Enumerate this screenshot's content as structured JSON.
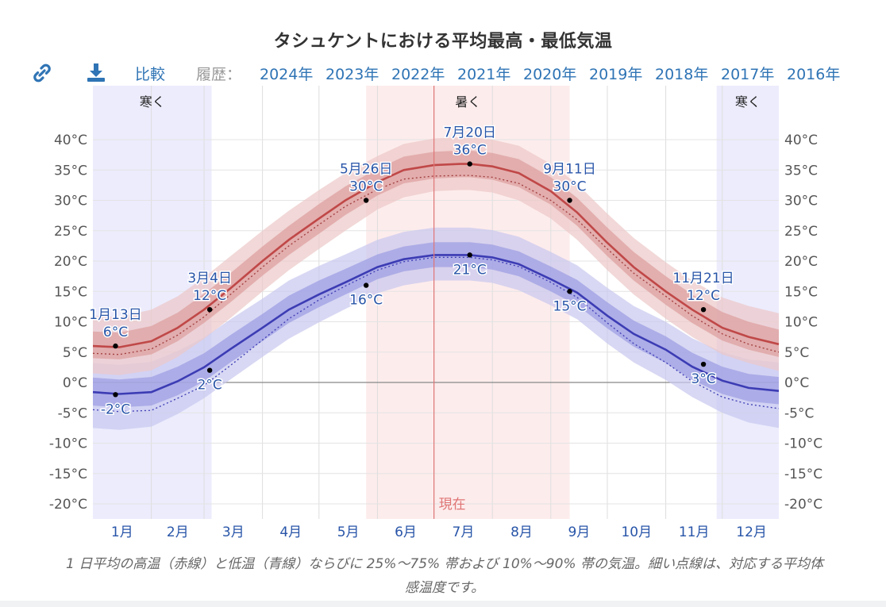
{
  "title": "タシュケントにおける平均最高・最低気温",
  "toolbar": {
    "link_icon": "link-icon",
    "download_icon": "download-icon",
    "compare_label": "比較",
    "history_label": "履歴：",
    "years": [
      "2024年",
      "2023年",
      "2022年",
      "2021年",
      "2020年",
      "2019年",
      "2018年",
      "2017年",
      "2016年"
    ]
  },
  "caption": "1 日平均の高温（赤線）と低温（青線）ならびに 25%～75% 帯および 10%～90% 帯の気温。細い点線は、対応する平均体感温度です。",
  "colors": {
    "high_line": "#c04848",
    "low_line": "#3c3cb4",
    "high_band_inner": "#dd9c9c",
    "high_band_outer": "#ecc8c8",
    "low_band_inner": "#9b9be2",
    "low_band_outer": "#c8c8f0",
    "cold_shade": "#ececfd",
    "hot_shade": "#fdecec",
    "now_line": "#e07575",
    "annotation_text": "#2855a8"
  },
  "chart_data": {
    "type": "line",
    "title": "タシュケントにおける平均最高・最低気温",
    "x_unit": "day of year",
    "y_range": [
      -22.5,
      44
    ],
    "y_ticks": [
      -20,
      -15,
      -10,
      -5,
      0,
      5,
      10,
      15,
      20,
      25,
      30,
      35,
      40
    ],
    "y_tick_suffix": "°C",
    "months": [
      "1月",
      "2月",
      "3月",
      "4月",
      "5月",
      "6月",
      "7月",
      "8月",
      "9月",
      "10月",
      "11月",
      "12月"
    ],
    "grid": true,
    "x": [
      1,
      15,
      32,
      46,
      60,
      74,
      91,
      105,
      121,
      135,
      152,
      166,
      182,
      196,
      201,
      213,
      227,
      244,
      258,
      274,
      288,
      305,
      319,
      335,
      349,
      365
    ],
    "series": [
      {
        "name": "high",
        "values": [
          6,
          5.8,
          6.8,
          9,
          12,
          15.5,
          20,
          23.5,
          27,
          30,
          33,
          35,
          35.8,
          36,
          36,
          35.6,
          34.5,
          31.5,
          28,
          23,
          19,
          15,
          12,
          9,
          7.5,
          6.3
        ],
        "p25": [
          4,
          3.8,
          4.6,
          6.8,
          9.8,
          13.2,
          17.6,
          21,
          24.5,
          27.6,
          30.8,
          32.8,
          33.6,
          33.8,
          33.8,
          33.4,
          32.2,
          29.3,
          25.8,
          20.8,
          16.8,
          12.8,
          9.8,
          6.9,
          5.4,
          4.2
        ],
        "p75": [
          8.4,
          8.2,
          9.3,
          11.5,
          14.6,
          18,
          22.4,
          25.8,
          29.4,
          32.3,
          35.2,
          37.2,
          38,
          38.2,
          38.2,
          37.8,
          36.8,
          33.8,
          30.4,
          25.5,
          21.5,
          17.5,
          14.5,
          11.6,
          10,
          8.7
        ],
        "p10": [
          1.5,
          1.2,
          2,
          4.2,
          7.2,
          10.6,
          15,
          18.5,
          22,
          25,
          28.5,
          30.5,
          31.5,
          31.7,
          31.7,
          31.3,
          30,
          27,
          23.5,
          18.5,
          14.5,
          10.5,
          7.5,
          4.6,
          3.2,
          1.9
        ],
        "p90": [
          11,
          10.8,
          12,
          14.2,
          17.3,
          20.8,
          25,
          28.3,
          31.7,
          34.5,
          37.3,
          39.3,
          40.2,
          40.4,
          40.4,
          40,
          39,
          36,
          32.7,
          27.8,
          23.8,
          19.8,
          16.8,
          14,
          12.6,
          11.4
        ],
        "feels_like": [
          4.8,
          4.6,
          5.5,
          7.8,
          10.8,
          14.5,
          19,
          22.5,
          26,
          29,
          31.8,
          33.5,
          34,
          34.1,
          34.1,
          33.8,
          32.8,
          30,
          26.8,
          22,
          18,
          14.2,
          11,
          8,
          6.3,
          5
        ]
      },
      {
        "name": "low",
        "values": [
          -1.6,
          -1.9,
          -1.6,
          0.2,
          2.5,
          5.5,
          9,
          12,
          14.5,
          16.5,
          19,
          20.3,
          21,
          21,
          21,
          20.6,
          19.5,
          17,
          14.8,
          11,
          8,
          5.4,
          2.6,
          0.3,
          -0.9,
          -1.4
        ],
        "p25": [
          -3.8,
          -4.1,
          -3.8,
          -2.1,
          0.2,
          3.3,
          6.8,
          9.8,
          12.4,
          14.5,
          17,
          18.3,
          19,
          19,
          19,
          18.6,
          17.5,
          15,
          12.7,
          8.9,
          5.9,
          3.2,
          0.4,
          -1.9,
          -3.1,
          -3.6
        ],
        "p75": [
          0.8,
          0.5,
          0.9,
          2.6,
          4.8,
          7.8,
          11.3,
          14.3,
          16.8,
          18.7,
          21.1,
          22.4,
          23.1,
          23.1,
          23.1,
          22.7,
          21.6,
          19.1,
          16.9,
          13.2,
          10.2,
          7.6,
          4.9,
          2.6,
          1.4,
          0.9
        ],
        "p10": [
          -7.5,
          -7.8,
          -7.3,
          -5.2,
          -2.6,
          0.5,
          4.2,
          7.2,
          9.9,
          12.1,
          14.7,
          16,
          16.8,
          16.8,
          16.8,
          16.4,
          15.2,
          12.7,
          10.4,
          6.4,
          3.3,
          0.4,
          -2.4,
          -5,
          -6.6,
          -7.5
        ],
        "p90": [
          3.2,
          2.9,
          3.4,
          5.2,
          7.4,
          10.4,
          13.8,
          16.8,
          19.2,
          21.1,
          23.5,
          24.8,
          25.5,
          25.5,
          25.5,
          25.1,
          24,
          21.5,
          19.3,
          15.6,
          12.6,
          10,
          7.3,
          5,
          3.8,
          3.3
        ],
        "feels_like": [
          -4.5,
          -4.8,
          -4.6,
          -2.6,
          -0.5,
          2.8,
          7,
          10.5,
          13.6,
          15.9,
          18.5,
          19.9,
          20.6,
          20.6,
          20.6,
          20.2,
          19.1,
          16.5,
          14,
          9.8,
          6.4,
          3.3,
          0.2,
          -2.4,
          -3.6,
          -4.3
        ]
      }
    ],
    "seasons": [
      {
        "label": "寒く",
        "start_day": 1,
        "end_day": 64,
        "kind": "cold"
      },
      {
        "label": "暑く",
        "start_day": 146,
        "end_day": 254,
        "kind": "hot"
      },
      {
        "label": "寒く",
        "start_day": 332,
        "end_day": 365,
        "kind": "cold"
      }
    ],
    "now": {
      "label": "現在",
      "day": 182
    },
    "annotations": [
      {
        "date": "1月13日",
        "temp": "6°C",
        "day": 13,
        "value": 6,
        "series": "high",
        "pos": "above"
      },
      {
        "date": "3月4日",
        "temp": "12°C",
        "day": 63,
        "value": 12,
        "series": "high",
        "pos": "above"
      },
      {
        "date": "5月26日",
        "temp": "30°C",
        "day": 146,
        "value": 30,
        "series": "high",
        "pos": "above"
      },
      {
        "date": "7月20日",
        "temp": "36°C",
        "day": 201,
        "value": 36,
        "series": "high",
        "pos": "above"
      },
      {
        "date": "9月11日",
        "temp": "30°C",
        "day": 254,
        "value": 30,
        "series": "high",
        "pos": "above"
      },
      {
        "date": "11月21日",
        "temp": "12°C",
        "day": 325,
        "value": 12,
        "series": "high",
        "pos": "above"
      },
      {
        "date": "",
        "temp": "-2°C",
        "day": 13,
        "value": -2,
        "series": "low",
        "pos": "below"
      },
      {
        "date": "",
        "temp": "2°C",
        "day": 63,
        "value": 2,
        "series": "low",
        "pos": "below"
      },
      {
        "date": "",
        "temp": "16°C",
        "day": 146,
        "value": 16,
        "series": "low",
        "pos": "below"
      },
      {
        "date": "",
        "temp": "21°C",
        "day": 201,
        "value": 21,
        "series": "low",
        "pos": "below"
      },
      {
        "date": "",
        "temp": "15°C",
        "day": 254,
        "value": 15,
        "series": "low",
        "pos": "below"
      },
      {
        "date": "",
        "temp": "3°C",
        "day": 325,
        "value": 3,
        "series": "low",
        "pos": "below"
      }
    ]
  }
}
